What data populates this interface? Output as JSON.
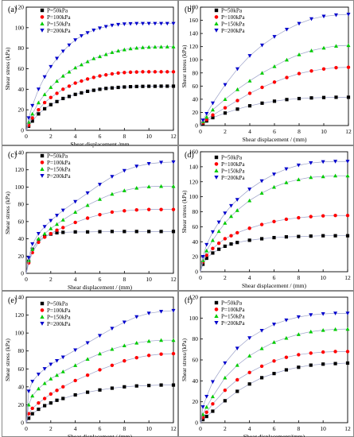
{
  "chart_data": [
    {
      "type": "scatter",
      "panel_label": "(a)",
      "xlabel": "Shear displacement /mm",
      "ylabel": "Shear stress (kPa)",
      "xlim": [
        0,
        12
      ],
      "ylim": [
        0,
        120
      ],
      "xticks": [
        0,
        2,
        4,
        6,
        8,
        10,
        12
      ],
      "yticks": [
        0,
        20,
        40,
        60,
        80,
        100,
        120
      ],
      "legend_position": "top-left",
      "x": [
        0.2,
        0.5,
        1,
        1.5,
        2,
        2.5,
        3,
        3.5,
        4,
        4.5,
        5,
        5.5,
        6,
        6.5,
        7,
        7.5,
        8,
        8.5,
        9,
        9.5,
        10,
        10.5,
        11,
        11.5,
        12
      ],
      "series": [
        {
          "name": "P=50kPa",
          "color": "#000000",
          "marker": "square",
          "values": [
            4,
            9,
            16,
            21,
            25,
            28,
            31,
            33,
            35,
            36.5,
            38,
            39,
            40,
            40.8,
            41.3,
            41.8,
            42.2,
            42.5,
            42.7,
            42.8,
            42.9,
            42.9,
            43,
            43,
            43
          ]
        },
        {
          "name": "P=100kPa",
          "color": "#ff0000",
          "marker": "circle",
          "values": [
            5,
            12,
            20,
            27,
            32,
            36,
            40,
            43,
            46,
            48,
            50,
            51.5,
            53,
            54,
            55,
            55.8,
            56.3,
            56.6,
            56.8,
            57,
            57,
            57,
            57,
            57,
            57
          ]
        },
        {
          "name": "P=150kPa",
          "color": "#00cc00",
          "marker": "triangle-up",
          "values": [
            8,
            16,
            27,
            35,
            42,
            48,
            53,
            57,
            61,
            64,
            67,
            70,
            72,
            74,
            76,
            77.5,
            78.7,
            79.6,
            80.3,
            80.8,
            81.1,
            81.3,
            81.4,
            81.5,
            81.5
          ]
        },
        {
          "name": "P=200kPa",
          "color": "#0000cc",
          "marker": "triangle-down",
          "values": [
            12,
            24,
            40,
            52,
            62,
            70,
            77,
            83,
            88,
            92,
            95,
            97.5,
            99.5,
            101,
            102.2,
            103,
            103.5,
            103.8,
            104,
            104,
            104,
            104,
            104,
            104,
            104
          ]
        }
      ]
    },
    {
      "type": "scatter",
      "panel_label": "(b)",
      "xlabel": "Shear displacement / (mm)",
      "ylabel": "Shear stress (kPa)",
      "xlim": [
        0,
        12
      ],
      "ylim": [
        0,
        180
      ],
      "xticks": [
        0,
        2,
        4,
        6,
        8,
        10,
        12
      ],
      "yticks": [
        0,
        20,
        40,
        60,
        80,
        100,
        120,
        140,
        160,
        180
      ],
      "legend_position": "top-left",
      "x": [
        0.2,
        0.5,
        1,
        2,
        3,
        4,
        5,
        6,
        7,
        8,
        9,
        10,
        11,
        12
      ],
      "series": [
        {
          "name": "P=50kPa",
          "color": "#000000",
          "marker": "square",
          "values": [
            3,
            7,
            12,
            19,
            25,
            30,
            34,
            37,
            39.5,
            41,
            42,
            42.6,
            43,
            43
          ]
        },
        {
          "name": "P=100kPa",
          "color": "#ff0000",
          "marker": "circle",
          "values": [
            4,
            9,
            16,
            27,
            38,
            49,
            58,
            66,
            73,
            79,
            83,
            86,
            88,
            88.5
          ]
        },
        {
          "name": "P=150kPa",
          "color": "#00cc00",
          "marker": "triangle-up",
          "values": [
            6,
            13,
            24,
            40,
            55,
            68,
            80,
            90,
            100,
            108,
            114,
            118,
            121,
            122
          ]
        },
        {
          "name": "P=200kPa",
          "color": "#0000cc",
          "marker": "triangle-down",
          "values": [
            8,
            18,
            34,
            62,
            86,
            106,
            122,
            135,
            146,
            155,
            162,
            166,
            168,
            169
          ]
        }
      ]
    },
    {
      "type": "scatter",
      "panel_label": "(c)",
      "xlabel": "Shear displacement / (mm)",
      "ylabel": "Shear stress (kPa)",
      "xlim": [
        0,
        12
      ],
      "ylim": [
        0,
        140
      ],
      "xticks": [
        0,
        2,
        4,
        6,
        8,
        10,
        12
      ],
      "yticks": [
        0,
        20,
        40,
        60,
        80,
        100,
        120,
        140
      ],
      "legend_position": "top-left",
      "x": [
        0.2,
        0.5,
        1,
        1.5,
        2,
        2.5,
        3,
        4,
        5,
        6,
        7,
        8,
        9,
        10,
        11,
        12
      ],
      "series": [
        {
          "name": "P=50kPa",
          "color": "#000000",
          "marker": "square",
          "values": [
            14,
            28,
            38,
            43,
            45.5,
            47,
            47.5,
            48,
            48,
            48.3,
            48.5,
            48.5,
            48.5,
            48.5,
            48.5,
            48.5
          ]
        },
        {
          "name": "P=100kPa",
          "color": "#ff0000",
          "marker": "circle",
          "values": [
            12,
            24,
            36,
            42,
            46,
            50,
            53,
            59,
            64,
            68,
            71,
            72.5,
            73.5,
            74,
            74,
            74
          ]
        },
        {
          "name": "P=150kPa",
          "color": "#00cc00",
          "marker": "triangle-up",
          "values": [
            15,
            28,
            40,
            46,
            52,
            57,
            62,
            71,
            79,
            86,
            92,
            96,
            99,
            100.5,
            101,
            101
          ]
        },
        {
          "name": "P=200kPa",
          "color": "#0000cc",
          "marker": "triangle-down",
          "values": [
            18,
            34,
            46,
            54,
            61,
            67,
            73,
            83,
            93,
            103,
            112,
            119,
            124,
            127,
            128.5,
            129
          ]
        }
      ]
    },
    {
      "type": "scatter",
      "panel_label": "(d)",
      "xlabel": "Shear displacement / (mm)",
      "ylabel": "Shear stress (kPa)",
      "xlim": [
        0,
        12
      ],
      "ylim": [
        0,
        160
      ],
      "xticks": [
        0,
        2,
        4,
        6,
        8,
        10,
        12
      ],
      "yticks": [
        0,
        20,
        40,
        60,
        80,
        100,
        120,
        140,
        160
      ],
      "legend_position": "top-left",
      "x": [
        0.2,
        0.5,
        1,
        1.5,
        2,
        2.5,
        3,
        4,
        5,
        6,
        7,
        8,
        9,
        10,
        11,
        12
      ],
      "series": [
        {
          "name": "P=50kPa",
          "color": "#000000",
          "marker": "square",
          "values": [
            10,
            18,
            25,
            30,
            34,
            37,
            39,
            42,
            44,
            45.5,
            46.5,
            47,
            47.5,
            48,
            48,
            48
          ]
        },
        {
          "name": "P=100kPa",
          "color": "#ff0000",
          "marker": "circle",
          "values": [
            13,
            22,
            31,
            38,
            44,
            48,
            52,
            58,
            63,
            67,
            70,
            72,
            73.5,
            74.5,
            75,
            75
          ]
        },
        {
          "name": "P=150kPa",
          "color": "#00cc00",
          "marker": "triangle-up",
          "values": [
            15,
            28,
            42,
            54,
            65,
            74,
            82,
            95,
            105,
            113,
            119,
            123,
            126,
            127,
            128,
            128
          ]
        },
        {
          "name": "P=200kPa",
          "color": "#0000cc",
          "marker": "triangle-down",
          "values": [
            20,
            36,
            53,
            66,
            78,
            88,
            96,
            110,
            121,
            130,
            137,
            142,
            145,
            146.5,
            147,
            147
          ]
        }
      ]
    },
    {
      "type": "scatter",
      "panel_label": "(e)",
      "xlabel": "Shear displacement / (mm)",
      "ylabel": "Shear stress (kPa)",
      "xlim": [
        0,
        12
      ],
      "ylim": [
        0,
        140
      ],
      "xticks": [
        0,
        2,
        4,
        6,
        8,
        10,
        12
      ],
      "yticks": [
        0,
        20,
        40,
        60,
        80,
        100,
        120,
        140
      ],
      "legend_position": "top-left",
      "x": [
        0.2,
        0.5,
        1,
        1.5,
        2,
        2.5,
        3,
        4,
        5,
        6,
        7,
        8,
        9,
        10,
        11,
        12
      ],
      "series": [
        {
          "name": "P=50kPa",
          "color": "#000000",
          "marker": "square",
          "values": [
            5,
            10,
            15,
            19,
            22,
            25,
            27,
            31,
            34,
            36.5,
            38.5,
            40,
            41,
            41.5,
            42,
            42
          ]
        },
        {
          "name": "P=100kPa",
          "color": "#ff0000",
          "marker": "circle",
          "values": [
            10,
            16,
            22,
            27,
            32,
            36,
            40,
            47,
            53,
            59,
            64,
            69,
            72.5,
            75,
            76.5,
            77
          ]
        },
        {
          "name": "P=150kPa",
          "color": "#00cc00",
          "marker": "triangle-up",
          "values": [
            20,
            30,
            38,
            44,
            49,
            53,
            57,
            64,
            71,
            77,
            82,
            86,
            89,
            91,
            92,
            92
          ]
        },
        {
          "name": "P=200kPa",
          "color": "#0000cc",
          "marker": "triangle-down",
          "values": [
            35,
            46,
            54,
            60,
            65,
            69,
            73,
            81,
            89,
            97,
            105,
            112,
            118,
            122,
            124,
            125
          ]
        }
      ]
    },
    {
      "type": "scatter",
      "panel_label": "(f)",
      "xlabel": "Shear displacement/(mm)",
      "ylabel": "Shear stress/(kPa)",
      "xlim": [
        0,
        12
      ],
      "ylim": [
        0,
        120
      ],
      "xticks": [
        0,
        2,
        4,
        6,
        8,
        10,
        12
      ],
      "yticks": [
        0,
        20,
        40,
        60,
        80,
        100,
        120
      ],
      "legend_position": "top-left",
      "x": [
        0.2,
        0.5,
        1,
        2,
        3,
        4,
        5,
        6,
        7,
        8,
        9,
        10,
        11,
        12
      ],
      "series": [
        {
          "name": "P=50kPa",
          "color": "#000000",
          "marker": "square",
          "values": [
            3,
            6,
            11,
            21,
            30,
            37,
            43,
            47,
            50.5,
            53,
            55,
            56,
            56.5,
            57
          ]
        },
        {
          "name": "P=100kPa",
          "color": "#ff0000",
          "marker": "circle",
          "values": [
            5,
            10,
            18,
            31,
            41,
            48,
            54,
            59,
            62.5,
            65,
            66.5,
            67.5,
            68,
            68
          ]
        },
        {
          "name": "P=150kPa",
          "color": "#00cc00",
          "marker": "triangle-up",
          "values": [
            8,
            15,
            25,
            43,
            55,
            64,
            71,
            77,
            81,
            84.5,
            87,
            88.5,
            89.3,
            89.5
          ]
        },
        {
          "name": "P=200kPa",
          "color": "#0000cc",
          "marker": "triangle-down",
          "values": [
            15,
            25,
            39,
            57,
            71,
            81,
            88,
            94,
            98,
            101,
            103,
            104,
            104.5,
            104.5
          ]
        }
      ]
    }
  ]
}
